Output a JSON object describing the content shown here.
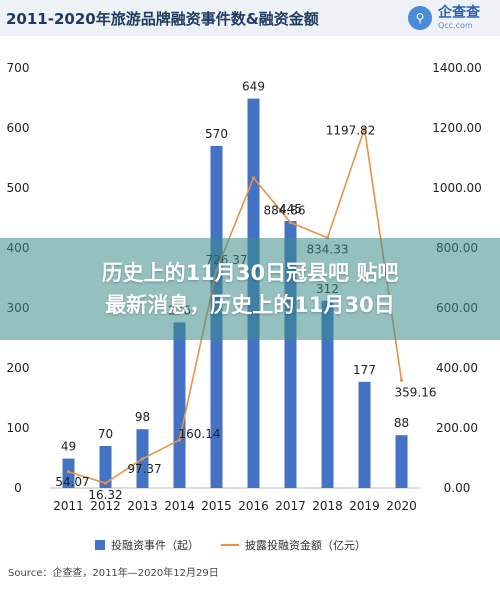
{
  "header": {
    "title": "2011-2020年旅游品牌融资事件数&融资金额",
    "brand_name": "企查查",
    "brand_url": "Qcc.com"
  },
  "overlay": {
    "line1": "历史上的11月30日冠县吧 贴吧",
    "line2": "最新消息，历史上的11月30日"
  },
  "source": "Source：企查查，2011年—2020年12月29日",
  "colors": {
    "bar": "#4472c4",
    "line": "#e8924a"
  },
  "chart_data": {
    "type": "bar",
    "categories": [
      "2011",
      "2012",
      "2013",
      "2014",
      "2015",
      "2016",
      "2017",
      "2018",
      "2019",
      "2020"
    ],
    "series": [
      {
        "name": "投融资事件（起）",
        "type": "bar",
        "axis": "left",
        "values": [
          49,
          70,
          98,
          276,
          570,
          649,
          445,
          312,
          177,
          88
        ]
      },
      {
        "name": "披露投融资金额（亿元）",
        "type": "line",
        "axis": "right",
        "values": [
          54.07,
          16.32,
          97.37,
          160.14,
          726.37,
          1034,
          884.86,
          834.33,
          1197.82,
          359.16
        ]
      }
    ],
    "bar_labels": [
      "49",
      "70",
      "98",
      "276",
      "570",
      "649",
      "445",
      "312",
      "177",
      "88"
    ],
    "line_labels": [
      "54.07",
      "16.32",
      "97.37",
      "160.14",
      "726.37",
      "",
      "884.86",
      "834.33",
      "1197.82",
      "359.16"
    ],
    "ylim_left": [
      0,
      700
    ],
    "ylim_right": [
      0,
      1400
    ],
    "yticks_left": [
      "0",
      "100",
      "200",
      "300",
      "400",
      "500",
      "600",
      "700"
    ],
    "yticks_right": [
      "0.00",
      "200.00",
      "400.00",
      "600.00",
      "800.00",
      "1000.00",
      "1200.00",
      "1400.00"
    ],
    "legend_position": "bottom",
    "grid": false
  }
}
